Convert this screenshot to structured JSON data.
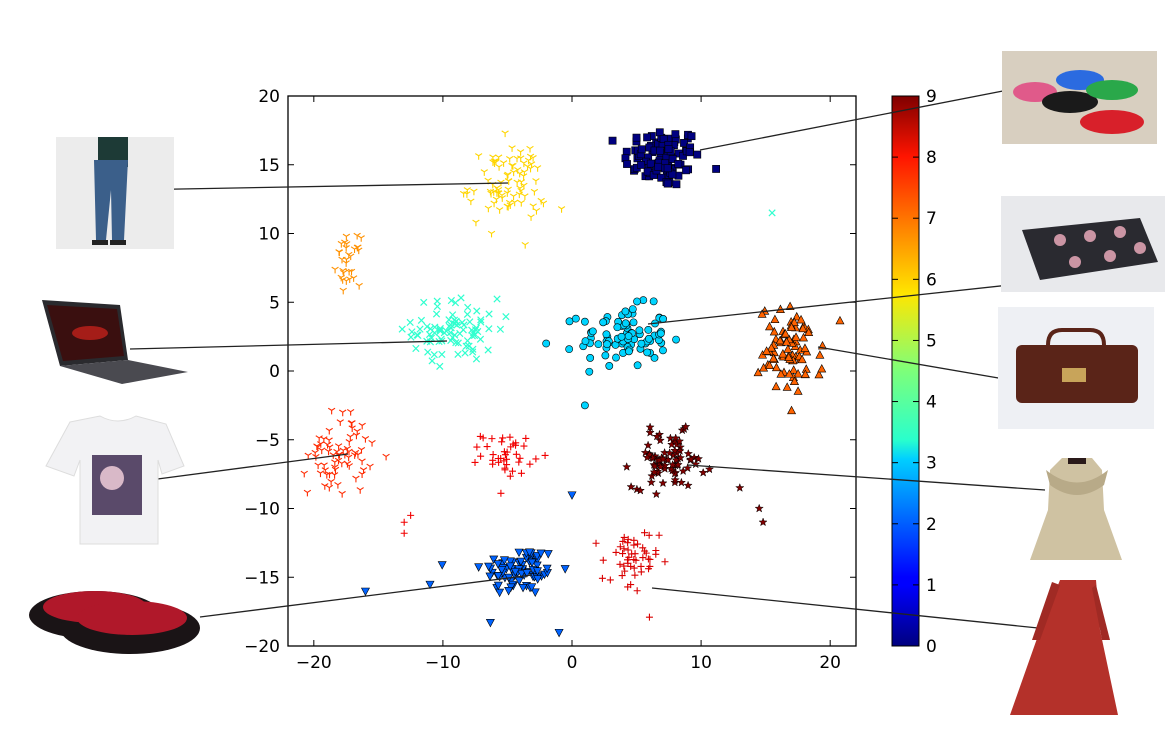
{
  "chart_data": {
    "type": "scatter",
    "title": "",
    "xlabel": "",
    "ylabel": "",
    "xlim": [
      -22,
      22
    ],
    "ylim": [
      -20,
      20
    ],
    "x_ticks": [
      "−20",
      "−10",
      "0",
      "10",
      "20"
    ],
    "y_ticks": [
      "20",
      "15",
      "10",
      "5",
      "0",
      "−5",
      "−10",
      "−15",
      "−20"
    ],
    "grid": false,
    "colorbar": {
      "min": 0,
      "max": 9,
      "ticks": [
        "0",
        "1",
        "2",
        "3",
        "4",
        "5",
        "6",
        "7",
        "8",
        "9"
      ],
      "colormap": "jet"
    },
    "clusters": [
      {
        "label_value": 0,
        "marker": "square",
        "center": [
          7,
          15.5
        ],
        "spread": [
          3,
          2.2
        ],
        "count": 95,
        "outliers": []
      },
      {
        "label_value": 2,
        "marker": "triangle-down",
        "center": [
          -4,
          -14.5
        ],
        "spread": [
          3,
          1.8
        ],
        "count": 85,
        "outliers": [
          [
            -16,
            -16
          ],
          [
            -11,
            -15.5
          ],
          [
            -1,
            -19
          ],
          [
            0,
            -9
          ]
        ]
      },
      {
        "label_value": 3,
        "marker": "circle",
        "center": [
          4,
          2.5
        ],
        "spread": [
          3.4,
          2.2
        ],
        "count": 85,
        "outliers": [
          [
            -2,
            2
          ],
          [
            1,
            -2.5
          ]
        ]
      },
      {
        "label_value": 3.8,
        "marker": "x",
        "center": [
          -9,
          3
        ],
        "spread": [
          3.3,
          2.3
        ],
        "count": 85,
        "outliers": [
          [
            15.5,
            11.5
          ]
        ]
      },
      {
        "label_value": 6,
        "marker": "tri-down",
        "center": [
          -5,
          13.5
        ],
        "spread": [
          3,
          3
        ],
        "count": 85,
        "outliers": []
      },
      {
        "label_value": 6.6,
        "marker": "tri-down",
        "center": [
          -17.3,
          8
        ],
        "spread": [
          0.9,
          1.7
        ],
        "count": 30,
        "outliers": []
      },
      {
        "label_value": 7,
        "marker": "triangle-up",
        "center": [
          17,
          1.5
        ],
        "spread": [
          2.5,
          3.2
        ],
        "count": 85,
        "outliers": []
      },
      {
        "label_value": 7.5,
        "marker": "tri-down",
        "center": [
          -18,
          -6
        ],
        "spread": [
          2.4,
          3
        ],
        "count": 70,
        "outliers": []
      },
      {
        "label_value": 8,
        "marker": "plus",
        "center": [
          -5,
          -6
        ],
        "spread": [
          2,
          1.5
        ],
        "count": 40,
        "outliers": [
          [
            -13,
            -11
          ],
          [
            -12.5,
            -10.5
          ],
          [
            -13,
            -11.8
          ]
        ]
      },
      {
        "label_value": 8.2,
        "marker": "plus",
        "center": [
          4.5,
          -14
        ],
        "spread": [
          2.2,
          2.6
        ],
        "count": 50,
        "outliers": []
      },
      {
        "label_value": 9,
        "marker": "star",
        "center": [
          7.5,
          -6.5
        ],
        "spread": [
          2.8,
          2
        ],
        "count": 80,
        "outliers": [
          [
            13,
            -8.5
          ],
          [
            14.5,
            -10
          ],
          [
            14.8,
            -11
          ]
        ]
      }
    ]
  },
  "thumbnails": [
    {
      "name": "jeans-photo",
      "label": "jeans",
      "color": "#3b5f8a"
    },
    {
      "name": "laptop-photo",
      "label": "laptop",
      "color": "#2a2a2e"
    },
    {
      "name": "tshirt-photo",
      "label": "t-shirt",
      "color": "#f2f2f4"
    },
    {
      "name": "slippers-photo",
      "label": "slippers",
      "color": "#b0182a"
    },
    {
      "name": "sneakers-photo",
      "label": "sneakers",
      "color": "#d8cfc0"
    },
    {
      "name": "wallet-photo",
      "label": "wallet",
      "color": "#2a2a30"
    },
    {
      "name": "handbag-photo",
      "label": "handbag",
      "color": "#5a2418"
    },
    {
      "name": "coat-photo",
      "label": "coat",
      "color": "#cfc2a2"
    },
    {
      "name": "red-dress-photo",
      "label": "red dress",
      "color": "#b4312a"
    }
  ]
}
